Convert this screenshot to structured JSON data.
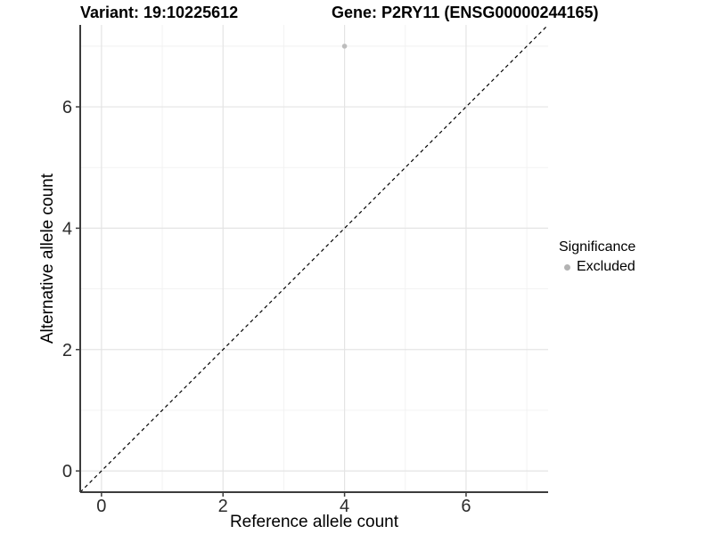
{
  "chart_data": {
    "type": "scatter",
    "title_left": "Variant: 19:10225612",
    "title_right": "Gene: P2RY11 (ENSG00000244165)",
    "xlabel": "Reference allele count",
    "ylabel": "Alternative allele count",
    "xlim": [
      -0.35,
      7.35
    ],
    "ylim": [
      -0.35,
      7.35
    ],
    "x_major_ticks": [
      0,
      2,
      4,
      6
    ],
    "y_major_ticks": [
      0,
      2,
      4,
      6
    ],
    "x_minor_ticks": [
      1,
      3,
      5,
      7
    ],
    "y_minor_ticks": [
      1,
      3,
      5,
      7
    ],
    "grid": "major+minor",
    "series": [
      {
        "name": "Excluded",
        "color": "#bdbdbd",
        "point_radius": 2.8,
        "points": [
          {
            "x": 4,
            "y": 7
          }
        ]
      }
    ],
    "reference_line": {
      "type": "identity y=x",
      "style": "dashed",
      "color": "#000000"
    },
    "legend": {
      "position": "right",
      "title": "Significance",
      "items": [
        {
          "label": "Excluded",
          "color": "#b3b3b3"
        }
      ]
    }
  },
  "colors": {
    "background": "#ffffff",
    "grid_major": "#e4e4e4",
    "grid_minor": "#f1f1f1",
    "axis_line": "#3c3c3c",
    "tick_label": "#2b2b2b",
    "title": "#000000"
  }
}
